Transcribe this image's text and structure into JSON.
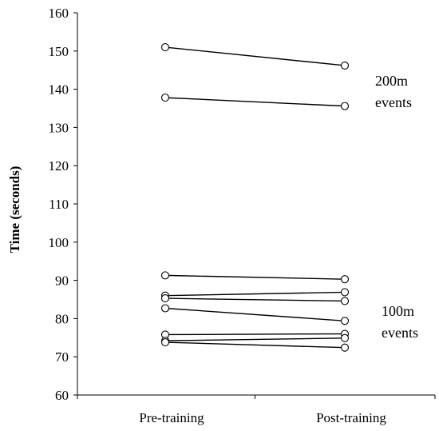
{
  "chart_data": {
    "type": "line",
    "categories": [
      "Pre-training",
      "Post-training"
    ],
    "ylabel": "Time (seconds)",
    "xlabel": "",
    "ylim": [
      60,
      160
    ],
    "yticks": [
      60,
      70,
      80,
      90,
      100,
      110,
      120,
      130,
      140,
      150,
      160
    ],
    "grid": false,
    "series": [
      {
        "group": "200m",
        "values": [
          151.0,
          146.2
        ]
      },
      {
        "group": "200m",
        "values": [
          137.8,
          135.6
        ]
      },
      {
        "group": "100m",
        "values": [
          91.3,
          90.3
        ]
      },
      {
        "group": "100m",
        "values": [
          86.0,
          86.9
        ]
      },
      {
        "group": "100m",
        "values": [
          85.3,
          84.6
        ]
      },
      {
        "group": "100m",
        "values": [
          82.7,
          79.4
        ]
      },
      {
        "group": "100m",
        "values": [
          75.8,
          76.0
        ]
      },
      {
        "group": "100m",
        "values": [
          74.2,
          74.9
        ]
      },
      {
        "group": "100m",
        "values": [
          73.8,
          72.4
        ]
      }
    ],
    "annotations": [
      {
        "id": "200m",
        "lines": [
          "200m",
          "events"
        ]
      },
      {
        "id": "100m",
        "lines": [
          "100m",
          "events"
        ]
      }
    ]
  }
}
